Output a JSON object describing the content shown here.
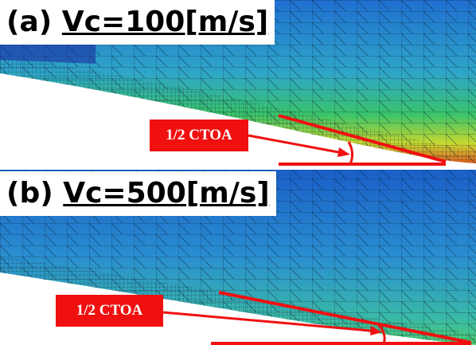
{
  "panels": [
    {
      "label": "(a)",
      "title": "Vc=100[m/s]",
      "annotation": "1/2 CTOA"
    },
    {
      "label": "(b)",
      "title": "Vc=500[m/s]",
      "annotation": "1/2 CTOA"
    }
  ]
}
